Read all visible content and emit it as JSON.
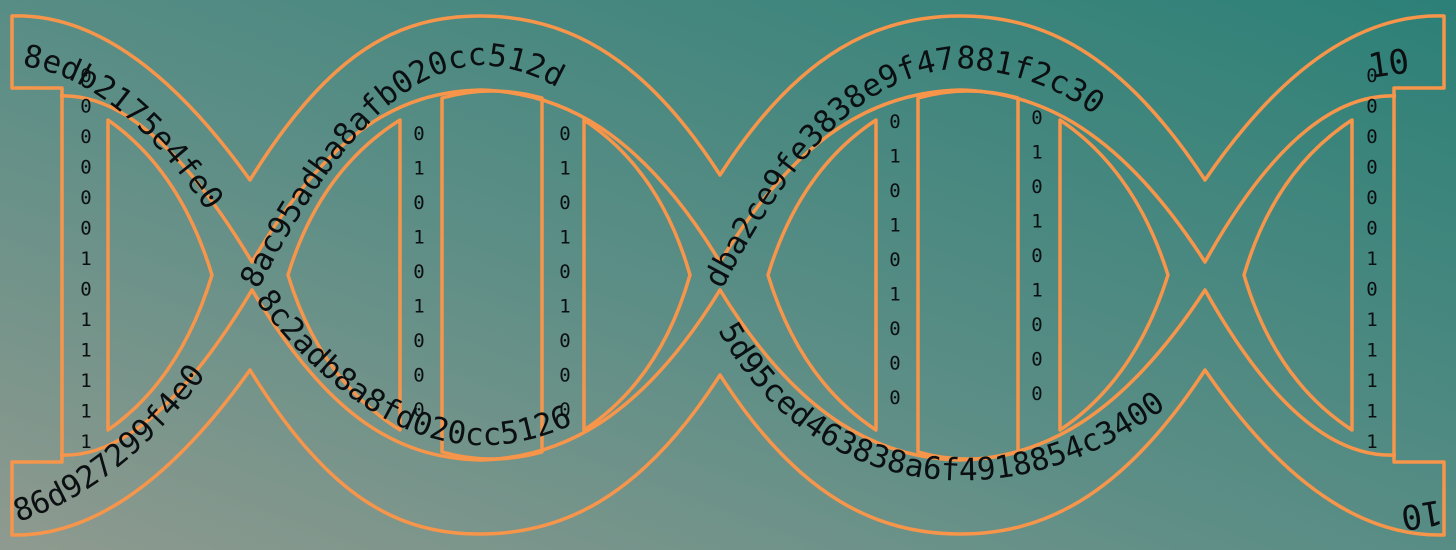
{
  "colors": {
    "background_top_right": "#2f8077",
    "background_bottom_left": "#8f9a8f",
    "strand_outline": "#f7954a",
    "text": "#0b0f12"
  },
  "strand_texts": {
    "top_left": "8edb2175e4fe0",
    "top_middle": "8ac95adba8afb020cc512d",
    "top_right": "dba2ce9fe3838e9f47881f2c30",
    "bottom_left": "86d927299f4e0",
    "bottom_middle": "8c2adb8a8fd020cc5126",
    "bottom_right": "5d95ced463838a6f4918854c3400",
    "corner_top_right": "10",
    "corner_bottom_right": "10"
  },
  "bit_columns": [
    [
      "0",
      "0",
      "0",
      "0",
      "0",
      "0",
      "1",
      "0",
      "1",
      "1",
      "1",
      "1",
      "1"
    ],
    [
      "0",
      "1",
      "0",
      "1",
      "0",
      "1",
      "0",
      "0",
      "0"
    ],
    [
      "0",
      "1",
      "0",
      "1",
      "0",
      "1",
      "0",
      "0",
      "0"
    ],
    [
      "0",
      "1",
      "0",
      "1",
      "0",
      "1",
      "0",
      "0",
      "0"
    ],
    [
      "0",
      "1",
      "0",
      "1",
      "0",
      "1",
      "0",
      "0",
      "0"
    ],
    [
      "0",
      "0",
      "0",
      "0",
      "0",
      "0",
      "1",
      "0",
      "1",
      "1",
      "1",
      "1",
      "1"
    ]
  ]
}
